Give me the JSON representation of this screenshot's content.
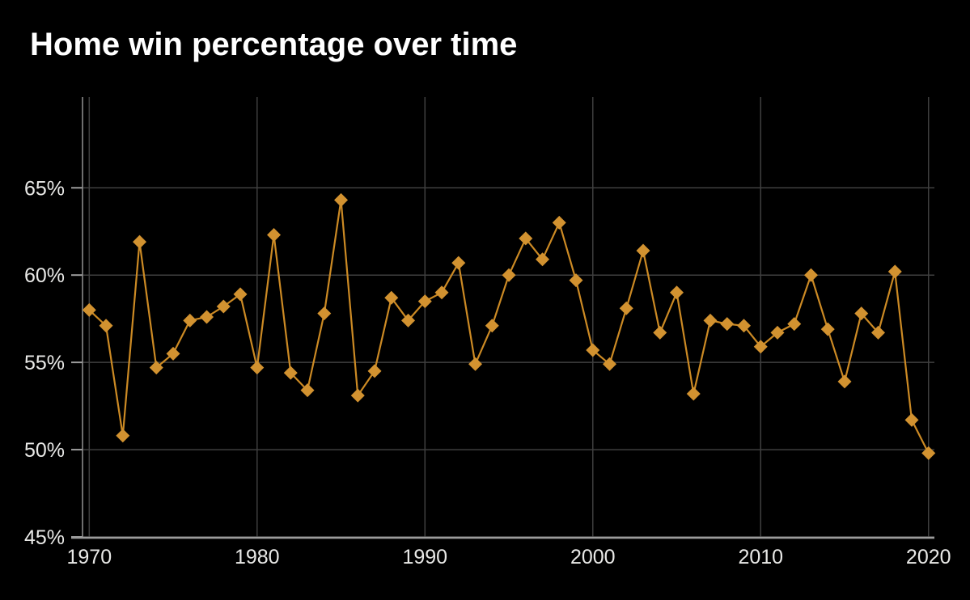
{
  "title": "Home win percentage over time",
  "colors": {
    "background": "#000000",
    "title": "#ffffff",
    "line": "#cc8a24",
    "marker": "#d29230",
    "grid": "#3f3f3f",
    "axis": "#9c9c9c",
    "spine": "#6e6e6e",
    "tick_label": "#e9e9e7"
  },
  "chart_data": {
    "type": "line",
    "title": "Home win percentage over time",
    "series_name": "Home win percentage",
    "marker": "diamond",
    "grid": true,
    "legend": false,
    "xlabel": "",
    "ylabel": "",
    "x_ticks": [
      1970,
      1980,
      1990,
      2000,
      2010,
      2020
    ],
    "y_ticks": [
      45,
      50,
      55,
      60,
      65
    ],
    "y_tick_suffix": "%",
    "xlim": [
      1969.6,
      2020.35
    ],
    "ylim": [
      45,
      70.2
    ],
    "x": [
      1970,
      1971,
      1972,
      1973,
      1974,
      1975,
      1976,
      1977,
      1978,
      1979,
      1980,
      1981,
      1982,
      1983,
      1984,
      1985,
      1986,
      1987,
      1988,
      1989,
      1990,
      1991,
      1992,
      1993,
      1994,
      1995,
      1996,
      1997,
      1998,
      1999,
      2000,
      2001,
      2002,
      2003,
      2004,
      2005,
      2006,
      2007,
      2008,
      2009,
      2010,
      2011,
      2012,
      2013,
      2014,
      2015,
      2016,
      2017,
      2018,
      2019,
      2020
    ],
    "values": [
      58.0,
      57.1,
      50.8,
      61.9,
      54.7,
      55.5,
      57.4,
      57.6,
      58.2,
      58.9,
      54.7,
      62.3,
      54.4,
      53.4,
      57.8,
      64.3,
      53.1,
      54.5,
      58.7,
      57.4,
      58.5,
      59.0,
      60.7,
      54.9,
      57.1,
      60.0,
      62.1,
      60.9,
      63.0,
      59.7,
      55.7,
      54.9,
      58.1,
      61.4,
      56.7,
      59.0,
      53.2,
      57.4,
      57.2,
      57.1,
      55.9,
      56.7,
      57.2,
      60.0,
      56.9,
      53.9,
      57.8,
      56.7,
      60.2,
      51.7,
      49.8
    ]
  }
}
